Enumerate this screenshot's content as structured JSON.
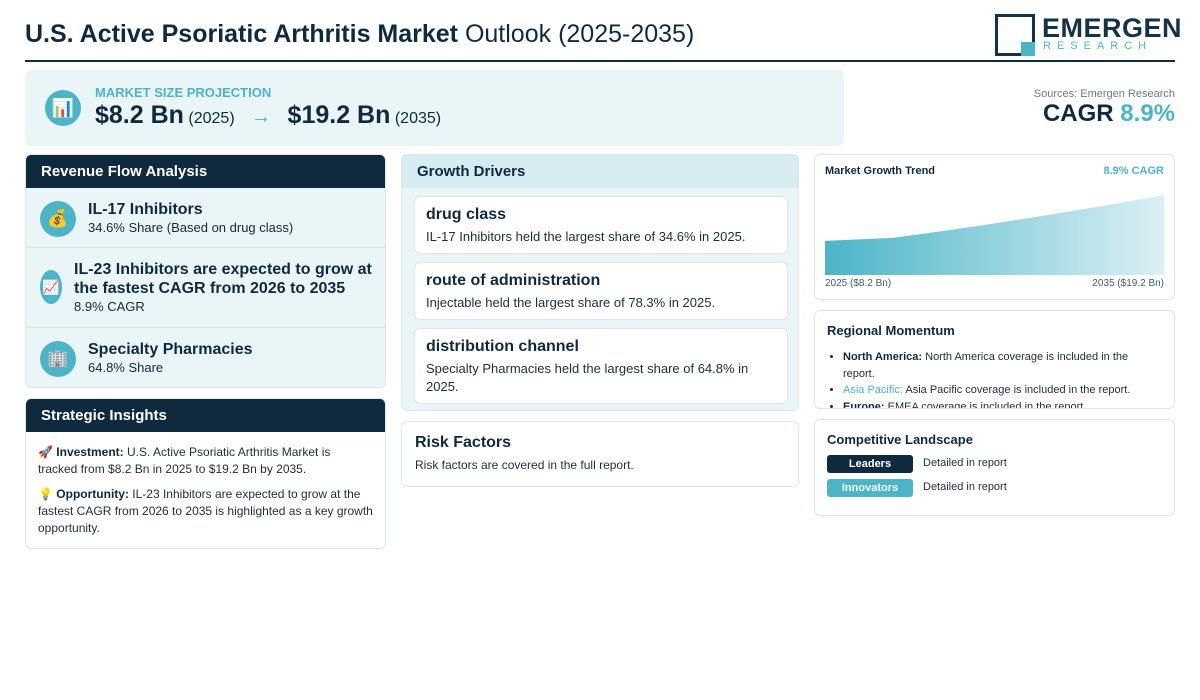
{
  "header": {
    "title_bold": "U.S. Active Psoriatic Arthritis Market",
    "title_rest": " Outlook (2025-2035)",
    "logo_name": "EMERGEN",
    "logo_sub": "RESEARCH"
  },
  "projection": {
    "label": "MARKET SIZE PROJECTION",
    "icon": "📊",
    "start_value": "$8.2 Bn",
    "start_year": "(2025)",
    "arrow": "→",
    "end_value": "$19.2 Bn",
    "end_year": "(2035)"
  },
  "sources": "Sources: Emergen Research",
  "cagr": {
    "label": "CAGR ",
    "value": "8.9%"
  },
  "revenue_flow": {
    "title": "Revenue Flow Analysis",
    "items": [
      {
        "icon": "💰",
        "title": "IL-17 Inhibitors",
        "sub": "34.6% Share (Based on drug class)"
      },
      {
        "icon": "📈",
        "title": "IL-23 Inhibitors are expected to grow at the fastest CAGR from 2026 to 2035",
        "sub": "8.9% CAGR"
      },
      {
        "icon": "🏢",
        "title": "Specialty Pharmacies",
        "sub": "64.8% Share"
      }
    ]
  },
  "insights": {
    "title": "Strategic Insights",
    "investment_icon": "🚀",
    "investment_label": "Investment:",
    "investment_text": " U.S. Active Psoriatic Arthritis Market is tracked from $8.2 Bn in 2025 to $19.2 Bn by 2035.",
    "opportunity_icon": "💡",
    "opportunity_label": "Opportunity:",
    "opportunity_text": " IL-23 Inhibitors are expected to grow at the fastest CAGR from 2026 to 2035 is highlighted as a key growth opportunity."
  },
  "drivers": {
    "title": "Growth Drivers",
    "cards": [
      {
        "title": "drug class",
        "text": "IL-17 Inhibitors held the largest share of 34.6% in 2025."
      },
      {
        "title": "route of administration",
        "text": "Injectable held the largest share of 78.3% in 2025."
      },
      {
        "title": "distribution channel",
        "text": "Specialty Pharmacies held the largest share of 64.8% in 2025."
      }
    ]
  },
  "risk": {
    "title": "Risk Factors",
    "text": "Risk factors are covered in the full report."
  },
  "trend": {
    "title": "Market Growth Trend",
    "cagr": "8.9% CAGR",
    "left_label": "2025 ($8.2 Bn)",
    "right_label": "2035 ($19.2 Bn)",
    "fill_color": "#4cb4c7"
  },
  "chart_data": {
    "type": "area",
    "x": [
      2025,
      2035
    ],
    "series": [
      {
        "values": [
          8.2,
          19.2
        ]
      }
    ],
    "title": "Market Growth Trend",
    "xlabel": "",
    "ylabel": ""
  },
  "regional": {
    "title": "Regional Momentum",
    "items": [
      {
        "region": "North America:",
        "text": " North America coverage is included in the report."
      },
      {
        "region": "Asia Pacific:",
        "text": " Asia Pacific coverage is included in the report."
      },
      {
        "region": "Europe:",
        "text": " EMEA coverage is included in the report."
      }
    ]
  },
  "competitive": {
    "title": "Competitive Landscape",
    "rows": [
      {
        "badge": "Leaders",
        "value": "Detailed in report"
      },
      {
        "badge": "Innovators",
        "value": "Detailed in report"
      }
    ]
  }
}
